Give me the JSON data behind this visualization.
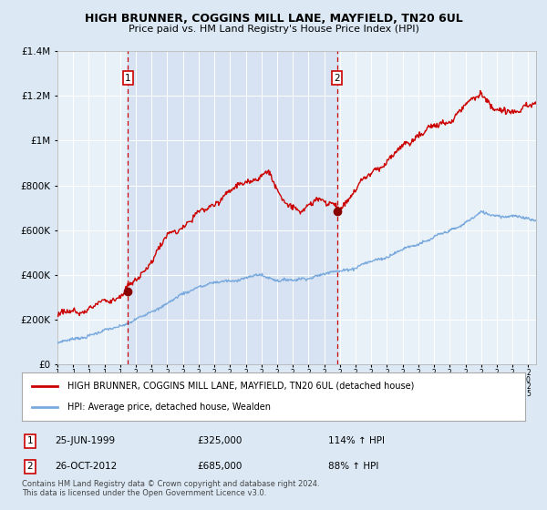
{
  "title": "HIGH BRUNNER, COGGINS MILL LANE, MAYFIELD, TN20 6UL",
  "subtitle": "Price paid vs. HM Land Registry's House Price Index (HPI)",
  "bg_color": "#dce9f5",
  "plot_bg": "#e8f0f8",
  "red_line_color": "#cc0000",
  "blue_line_color": "#7aaadd",
  "sale1_year": 1999.48,
  "sale1_price": 325000,
  "sale2_year": 2012.82,
  "sale2_price": 685000,
  "ylim": [
    0,
    1400000
  ],
  "xlim_start": 1995,
  "xlim_end": 2025.5,
  "legend_red_label": "HIGH BRUNNER, COGGINS MILL LANE, MAYFIELD, TN20 6UL (detached house)",
  "legend_blue_label": "HPI: Average price, detached house, Wealden",
  "note1_num": "1",
  "note1_date": "25-JUN-1999",
  "note1_price": "£325,000",
  "note1_hpi": "114% ↑ HPI",
  "note2_num": "2",
  "note2_date": "26-OCT-2012",
  "note2_price": "£685,000",
  "note2_hpi": "88% ↑ HPI",
  "footnote": "Contains HM Land Registry data © Crown copyright and database right 2024.\nThis data is licensed under the Open Government Licence v3.0."
}
